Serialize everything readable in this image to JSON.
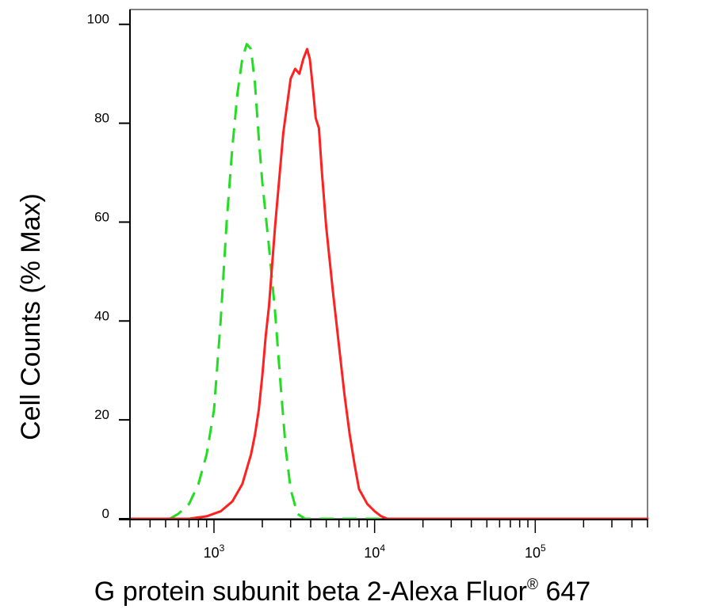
{
  "chart_data": {
    "type": "line",
    "title": "",
    "xlabel": "G protein subunit beta 2-Alexa Fluor",
    "xlabel_mark": "®",
    "xlabel_suffix": " 647",
    "ylabel": "Cell Counts (% Max)",
    "x_scale": "log",
    "xlim": [
      300,
      500000
    ],
    "ylim": [
      0,
      103
    ],
    "y_ticks": [
      0,
      20,
      40,
      60,
      80,
      100
    ],
    "y_tick_labels": [
      "0",
      "20",
      "40",
      "60",
      "80",
      "100"
    ],
    "x_ticks": [
      1000,
      10000,
      100000
    ],
    "x_tick_bases": [
      "10",
      "10",
      "10"
    ],
    "x_tick_exponents": [
      "3",
      "4",
      "5"
    ],
    "grid": false,
    "legend": "none",
    "series": [
      {
        "style": "dashed",
        "color": "#22dd22",
        "x": [
          530,
          600,
          700,
          800,
          900,
          1000,
          1100,
          1200,
          1300,
          1400,
          1500,
          1600,
          1700,
          1800,
          1900,
          2000,
          2200,
          2400,
          2600,
          2800,
          3000,
          3300,
          3700,
          5000,
          10000,
          20000,
          100000,
          500000
        ],
        "y": [
          0,
          1,
          3,
          7,
          13,
          22,
          40,
          60,
          75,
          86,
          93,
          96,
          95,
          88,
          77,
          68,
          55,
          42,
          27,
          14,
          6,
          1,
          0,
          0,
          0,
          0,
          0,
          0
        ]
      },
      {
        "style": "solid",
        "color": "#ff2020",
        "x": [
          300,
          700,
          900,
          1100,
          1300,
          1500,
          1700,
          1800,
          1900,
          2000,
          2100,
          2200,
          2400,
          2700,
          3000,
          3200,
          3400,
          3600,
          3800,
          3950,
          4100,
          4300,
          4500,
          4700,
          5000,
          5500,
          6000,
          6500,
          7000,
          7500,
          8000,
          9000,
          10000,
          11000,
          12000,
          13000,
          20000,
          100000,
          500000
        ],
        "y": [
          0,
          0,
          0.5,
          1.5,
          3.5,
          7,
          13,
          17,
          22,
          29,
          37,
          43,
          59,
          78,
          89,
          91,
          90,
          93,
          95,
          93,
          88,
          81,
          79,
          70,
          59,
          46,
          35,
          25,
          17,
          11,
          6,
          3,
          1.5,
          0.5,
          0,
          0,
          0,
          0,
          0
        ]
      }
    ]
  }
}
